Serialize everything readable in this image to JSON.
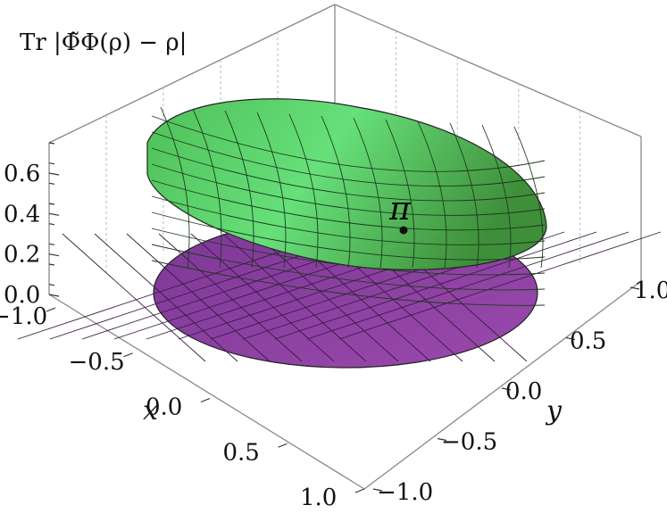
{
  "chart_data": {
    "type": "surface3d",
    "zlabel": "Tr |Φ̃Φ(ρ) − ρ|",
    "xlabel": "x",
    "ylabel": "y",
    "x_ticks": [
      "−1.0",
      "−0.5",
      "0.0",
      "0.5",
      "1.0"
    ],
    "y_ticks": [
      "−1.0",
      "−0.5",
      "0.0",
      "0.5",
      "1.0"
    ],
    "z_ticks": [
      "0.0",
      "0.2",
      "0.4",
      "0.6"
    ],
    "xlim": [
      -1,
      1
    ],
    "ylim": [
      -1,
      1
    ],
    "zlim": [
      0,
      0.75
    ],
    "grid": true,
    "surfaces": [
      {
        "description": "Bloch-disk domain at z = 0",
        "color": "#8a3f9e",
        "z_constant": 0
      },
      {
        "description": "error surface over the unit disk",
        "color": "#5fcf6a",
        "min_point": {
          "x": 0.48,
          "y": 0.25,
          "z": 0.33
        },
        "rim_z_range": [
          0.36,
          0.7
        ]
      }
    ],
    "annotations": [
      {
        "text": "π",
        "x": 0.48,
        "y": 0.25,
        "z": 0.33
      }
    ]
  }
}
